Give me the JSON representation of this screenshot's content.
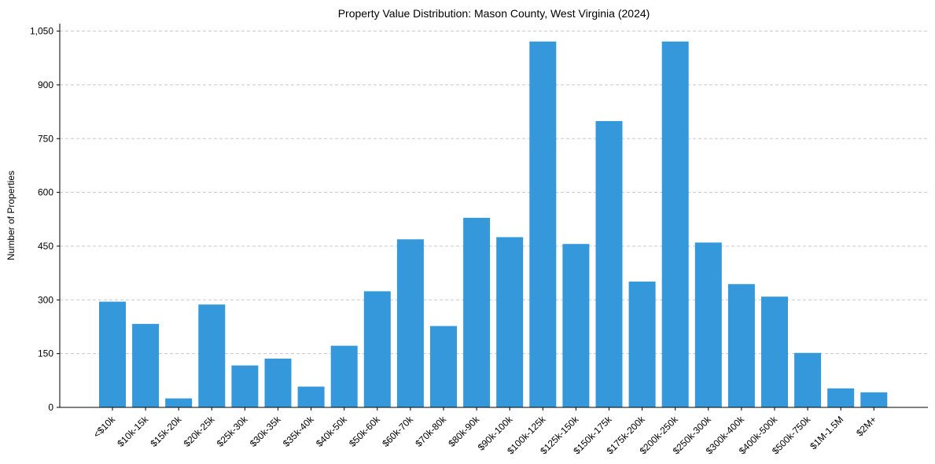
{
  "chart_data": {
    "type": "bar",
    "title": "Property Value Distribution: Mason County, West Virginia (2024)",
    "xlabel": "",
    "ylabel": "Number of Properties",
    "ylim": [
      0,
      1071
    ],
    "yticks": [
      0,
      150,
      300,
      450,
      600,
      750,
      900,
      1050
    ],
    "ytick_labels": [
      "0",
      "150",
      "300",
      "450",
      "600",
      "750",
      "900",
      "1,050"
    ],
    "grid": "y-dashed",
    "categories": [
      "<$10k",
      "$10k-15k",
      "$15k-20k",
      "$20k-25k",
      "$25k-30k",
      "$30k-35k",
      "$35k-40k",
      "$40k-50k",
      "$50k-60k",
      "$60k-70k",
      "$70k-80k",
      "$80k-90k",
      "$90k-100k",
      "$100k-125k",
      "$125k-150k",
      "$150k-175k",
      "$175k-200k",
      "$200k-250k",
      "$250k-300k",
      "$300k-400k",
      "$400k-500k",
      "$500k-750k",
      "$1M-1.5M",
      "$2M+"
    ],
    "values": [
      295,
      233,
      25,
      287,
      117,
      136,
      58,
      172,
      324,
      469,
      227,
      529,
      475,
      1021,
      456,
      799,
      351,
      1021,
      460,
      344,
      309,
      152,
      53,
      42
    ],
    "color": "#3498db"
  }
}
